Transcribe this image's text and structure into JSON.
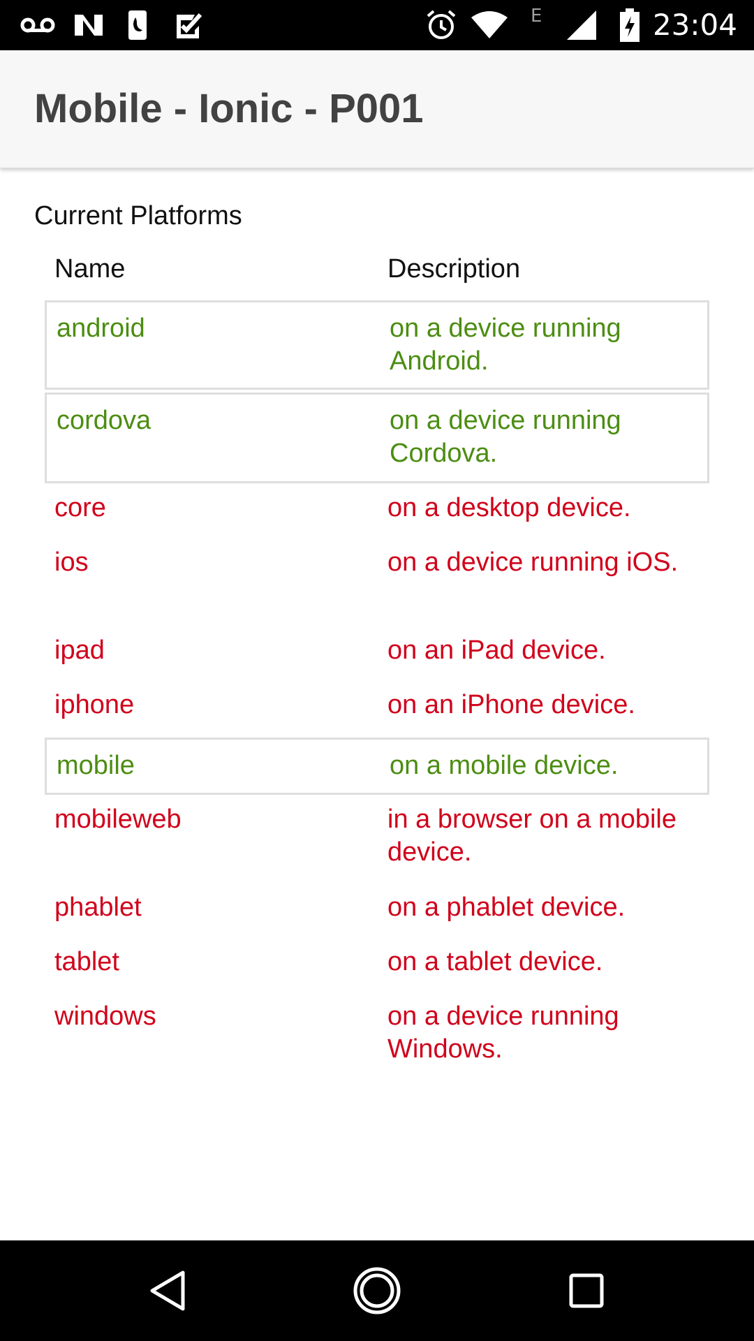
{
  "status_bar": {
    "time": "23:04",
    "network_label": "E",
    "icons": [
      "voicemail-icon",
      "n-notification-icon",
      "sim-card-icon",
      "check-notification-icon",
      "alarm-icon",
      "wifi-icon",
      "signal-icon",
      "battery-charging-icon"
    ]
  },
  "header": {
    "title": "Mobile - Ionic - P001"
  },
  "section_label": "Current Platforms",
  "table": {
    "headers": {
      "name": "Name",
      "description": "Description"
    },
    "rows": [
      {
        "name": "android",
        "description": "on a device running Android.",
        "active": true
      },
      {
        "name": "cordova",
        "description": "on a device running Cordova.",
        "active": true
      },
      {
        "name": "core",
        "description": "on a desktop device.",
        "active": false
      },
      {
        "name": "ios",
        "description": "on a device running iOS.",
        "active": false
      },
      {
        "name": "ipad",
        "description": "on an iPad device.",
        "active": false
      },
      {
        "name": "iphone",
        "description": "on an iPhone device.",
        "active": false
      },
      {
        "name": "mobile",
        "description": "on a mobile device.",
        "active": true
      },
      {
        "name": "mobileweb",
        "description": "in a browser on a mobile device.",
        "active": false
      },
      {
        "name": "phablet",
        "description": "on a phablet device.",
        "active": false
      },
      {
        "name": "tablet",
        "description": "on a tablet device.",
        "active": false
      },
      {
        "name": "windows",
        "description": "on a device running Windows.",
        "active": false
      }
    ]
  },
  "colors": {
    "active": "#4c8d12",
    "inactive": "#d0021b"
  },
  "nav_bar": {
    "icons": [
      "back-icon",
      "home-icon",
      "recents-icon"
    ]
  }
}
